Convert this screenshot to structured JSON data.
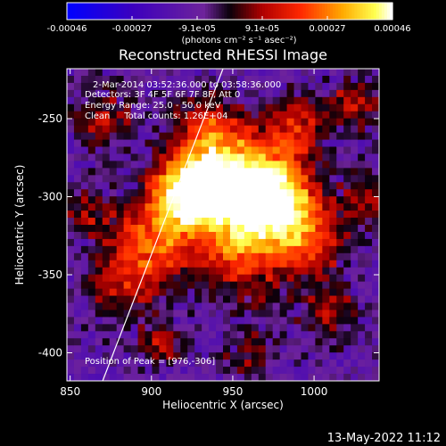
{
  "chart_data": {
    "type": "heatmap",
    "title": "Reconstructed RHESSI Image",
    "xlabel": "Heliocentric X (arcsec)",
    "ylabel": "Heliocentric Y (arcsec)",
    "xlim": [
      848,
      1040
    ],
    "ylim": [
      -418,
      -218
    ],
    "x_ticks": [
      850,
      900,
      950,
      1000
    ],
    "y_ticks": [
      -400,
      -350,
      -300,
      -250
    ],
    "colorbar": {
      "ticks": [
        "-0.00046",
        "-0.00027",
        "-9.1e-05",
        "9.1e-05",
        "0.00027",
        "0.00046"
      ],
      "label": "(photons cm⁻² s⁻¹ asec⁻²)",
      "range": [
        -0.00046,
        0.00046
      ]
    },
    "annotations": [
      "2-Mar-2014 03:52:36.000 to 03:58:36.000",
      "Detectors: 3F 4F 5F 6F 7F 8F, Att 0",
      "Energy Range: 25.0 - 50.0 keV",
      "Clean     Total counts: 1.26E+04"
    ],
    "peak_label": "Position of Peak = [976,-306]",
    "peak": {
      "x": 976,
      "y": -306
    },
    "limb_line": [
      [
        870,
        -418
      ],
      [
        944,
        -218
      ]
    ],
    "grid": false,
    "sources": [
      {
        "x": 922,
        "y": -297,
        "amp": 1.0,
        "sigma": 16
      },
      {
        "x": 975,
        "y": -302,
        "amp": 1.05,
        "sigma": 17
      },
      {
        "x": 950,
        "y": -288,
        "amp": 0.9,
        "sigma": 22
      },
      {
        "x": 900,
        "y": -330,
        "amp": 0.65,
        "sigma": 18
      },
      {
        "x": 998,
        "y": -328,
        "amp": 0.55,
        "sigma": 16
      },
      {
        "x": 955,
        "y": -335,
        "amp": 0.6,
        "sigma": 22
      },
      {
        "x": 990,
        "y": -255,
        "amp": 0.5,
        "sigma": 14
      },
      {
        "x": 935,
        "y": -255,
        "amp": 0.45,
        "sigma": 15
      },
      {
        "x": 870,
        "y": -250,
        "amp": 0.4,
        "sigma": 15
      },
      {
        "x": 860,
        "y": -310,
        "amp": 0.35,
        "sigma": 12
      },
      {
        "x": 880,
        "y": -360,
        "amp": 0.4,
        "sigma": 16
      },
      {
        "x": 1010,
        "y": -375,
        "amp": 0.35,
        "sigma": 15
      },
      {
        "x": 1025,
        "y": -240,
        "amp": 0.45,
        "sigma": 12
      },
      {
        "x": 960,
        "y": -400,
        "amp": 0.35,
        "sigma": 12
      },
      {
        "x": 905,
        "y": -395,
        "amp": 0.4,
        "sigma": 10
      },
      {
        "x": 1030,
        "y": -300,
        "amp": 0.35,
        "sigma": 12
      }
    ]
  },
  "footer": {
    "timestamp": "13-May-2022 11:12"
  }
}
